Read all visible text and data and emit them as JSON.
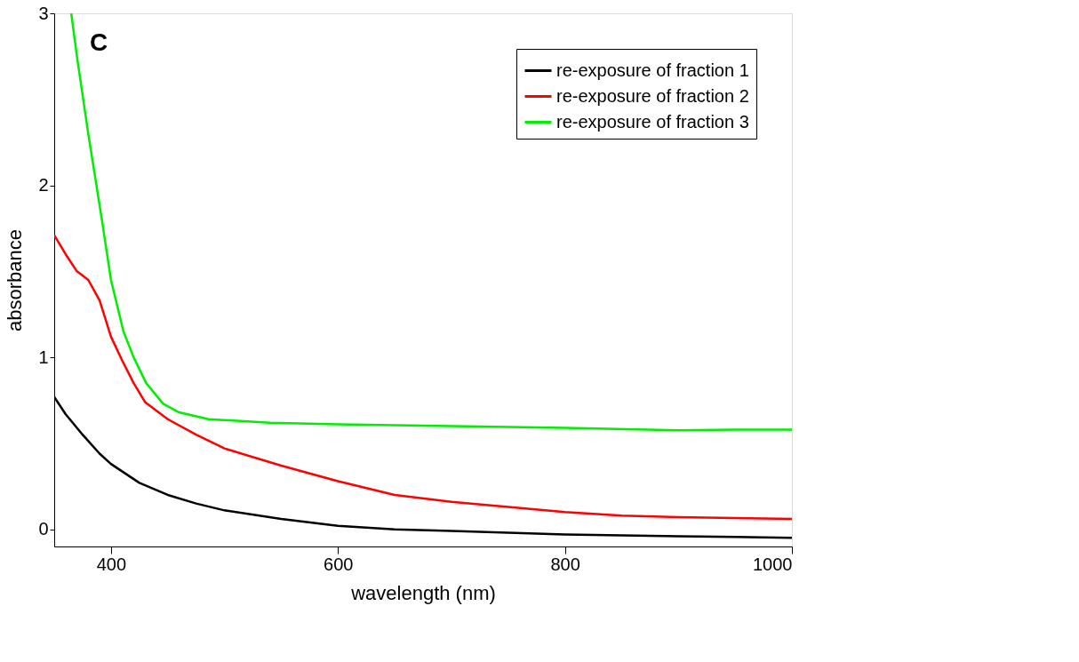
{
  "chart_data": {
    "type": "line",
    "xlabel": "wavelength (nm)",
    "ylabel": "absorbance",
    "annotations": [
      "C"
    ],
    "xlim": [
      350,
      1000
    ],
    "ylim": [
      -0.1,
      3
    ],
    "xticks": [
      400,
      600,
      800,
      1000
    ],
    "yticks": [
      0,
      1,
      2,
      3
    ],
    "grid": false,
    "legend": "top right",
    "marker": "none",
    "line_style": "solid",
    "series": [
      {
        "name": "re-exposure of fraction 1",
        "color": "#000000",
        "x": [
          350,
          360,
          375,
          390,
          400,
          425,
          450,
          475,
          500,
          550,
          600,
          650,
          700,
          750,
          800,
          850,
          900,
          950,
          1000
        ],
        "values": [
          0.77,
          0.67,
          0.55,
          0.44,
          0.38,
          0.27,
          0.2,
          0.15,
          0.11,
          0.06,
          0.02,
          0.0,
          -0.01,
          -0.02,
          -0.03,
          -0.035,
          -0.04,
          -0.045,
          -0.05
        ]
      },
      {
        "name": "re-exposure of fraction 2",
        "color": "#ff0000",
        "x": [
          350,
          360,
          370,
          380,
          390,
          400,
          410,
          420,
          430,
          450,
          475,
          500,
          550,
          600,
          650,
          700,
          750,
          800,
          850,
          900,
          950,
          1000
        ],
        "values": [
          1.71,
          1.6,
          1.5,
          1.45,
          1.33,
          1.12,
          0.98,
          0.85,
          0.74,
          0.64,
          0.55,
          0.47,
          0.37,
          0.28,
          0.2,
          0.16,
          0.13,
          0.1,
          0.08,
          0.07,
          0.065,
          0.06
        ]
      },
      {
        "name": "re-exposure of fraction 3",
        "color": "#00ee00",
        "x": [
          365,
          370,
          380,
          392,
          400,
          411,
          420,
          431,
          446,
          460,
          486,
          540,
          600,
          700,
          800,
          900,
          950,
          1000
        ],
        "values": [
          3.0,
          2.75,
          2.3,
          1.8,
          1.45,
          1.15,
          1.0,
          0.85,
          0.73,
          0.68,
          0.64,
          0.62,
          0.61,
          0.6,
          0.59,
          0.575,
          0.58,
          0.58
        ]
      }
    ]
  }
}
